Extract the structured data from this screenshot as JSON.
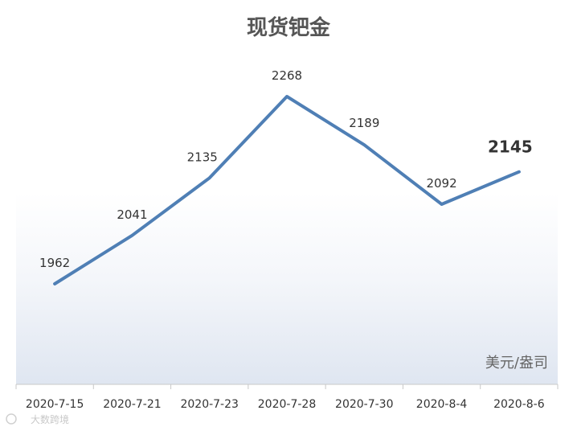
{
  "chart_data": {
    "type": "line",
    "title": "现货钯金",
    "unit_label": "美元/盎司",
    "categories": [
      "2020-7-15",
      "2020-7-21",
      "2020-7-23",
      "2020-7-28",
      "2020-7-30",
      "2020-8-4",
      "2020-8-6"
    ],
    "series": [
      {
        "values": [
          1962,
          2041,
          2135,
          2268,
          2189,
          2092,
          2145
        ]
      }
    ],
    "data_labels": [
      "1962",
      "2041",
      "2135",
      "2268",
      "2189",
      "2092",
      "2145"
    ],
    "emphasized_label_index": 6,
    "line_color": "#4f7fb5",
    "grid": false,
    "legend": "none"
  },
  "watermark": "大数跨境"
}
